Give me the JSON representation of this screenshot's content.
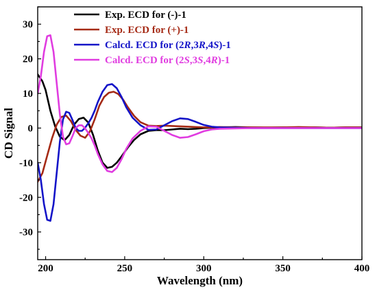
{
  "chart_data": {
    "type": "line",
    "xlabel": "Wavelength (nm)",
    "ylabel": "CD Signal",
    "xlim": [
      195,
      400
    ],
    "ylim": [
      -38,
      35
    ],
    "xticks": [
      200,
      250,
      300,
      350,
      400
    ],
    "yticks": [
      -30,
      -20,
      -10,
      0,
      10,
      20,
      30
    ],
    "grid": false,
    "legend_position": "top-center",
    "series": [
      {
        "name": "Exp. ECD for (-)-1",
        "legend_parts": [
          {
            "t": "Exp. ECD for (-)-1",
            "i": false
          }
        ],
        "color": "#000000",
        "x": [
          195,
          198,
          200,
          203,
          206,
          209,
          212,
          215,
          218,
          221,
          224,
          227,
          230,
          233,
          236,
          239,
          242,
          245,
          248,
          252,
          256,
          260,
          265,
          270,
          275,
          280,
          285,
          290,
          295,
          300,
          305,
          310,
          320,
          330,
          340,
          350,
          360,
          370,
          380,
          390,
          400
        ],
        "y": [
          15.5,
          13.5,
          11,
          5,
          0.5,
          -2.5,
          -3.5,
          -2,
          1,
          2.6,
          3,
          1.6,
          -2,
          -6.5,
          -10,
          -11.5,
          -11.2,
          -10,
          -8.2,
          -5.6,
          -3.4,
          -1.8,
          -0.8,
          -0.6,
          -0.6,
          -0.4,
          -0.2,
          -0.3,
          -0.2,
          0,
          0.1,
          0.2,
          0.3,
          0.2,
          0.1,
          0.2,
          0.2,
          0.2,
          0.1,
          0.2,
          0.2
        ]
      },
      {
        "name": "Exp. ECD for (+)-1",
        "legend_parts": [
          {
            "t": "Exp. ECD for (+)-1",
            "i": false
          }
        ],
        "color": "#a52a15",
        "x": [
          195,
          198,
          201,
          204,
          207,
          210,
          213,
          216,
          219,
          222,
          225,
          228,
          231,
          234,
          237,
          240,
          243,
          246,
          249,
          252,
          256,
          260,
          265,
          270,
          275,
          280,
          285,
          290,
          295,
          300,
          305,
          310,
          320,
          330,
          340,
          350,
          360,
          370,
          380,
          390,
          400
        ],
        "y": [
          -15.5,
          -13,
          -8,
          -3,
          1,
          3.2,
          3.6,
          2,
          -0.5,
          -2.2,
          -2.8,
          -1,
          2.5,
          6.5,
          9,
          10.2,
          10.5,
          9.8,
          8.2,
          6,
          3.5,
          1.7,
          0.7,
          0.6,
          0.7,
          0.6,
          0.5,
          0.4,
          0.3,
          0.2,
          0.2,
          0.3,
          0.2,
          0.2,
          0.2,
          0.2,
          0.3,
          0.2,
          0.1,
          0.2,
          0.2
        ]
      },
      {
        "name": "Calcd. ECD for (2R,3R,4S)-1",
        "legend_parts": [
          {
            "t": "Calcd. ECD for (2",
            "i": false
          },
          {
            "t": "R",
            "i": true
          },
          {
            "t": ",3",
            "i": false
          },
          {
            "t": "R",
            "i": true
          },
          {
            "t": ",4",
            "i": false
          },
          {
            "t": "S",
            "i": true
          },
          {
            "t": ")-1",
            "i": false
          }
        ],
        "color": "#1414c8",
        "x": [
          195,
          197,
          199,
          201,
          203,
          205,
          207,
          209,
          211,
          213,
          215,
          217,
          219,
          221,
          223,
          225,
          227,
          229,
          231,
          233,
          236,
          239,
          242,
          245,
          248,
          251,
          255,
          260,
          265,
          270,
          275,
          280,
          285,
          290,
          295,
          300,
          305,
          310,
          320,
          330,
          340,
          350,
          360,
          370,
          380,
          390,
          400
        ],
        "y": [
          -10,
          -15,
          -22,
          -26.5,
          -26.8,
          -22,
          -13,
          -4,
          2.5,
          4.7,
          4.4,
          2.3,
          0,
          -0.8,
          -0.8,
          0.1,
          1.4,
          2.9,
          5,
          7.5,
          10.5,
          12.4,
          12.7,
          11.5,
          9,
          6,
          3,
          0.8,
          -0.5,
          -0.4,
          0.8,
          2,
          2.8,
          2.6,
          1.8,
          0.9,
          0.4,
          0.2,
          0.1,
          0,
          0,
          0,
          0,
          0,
          0,
          0,
          0
        ]
      },
      {
        "name": "Calcd. ECD for (2S,3S,4R)-1",
        "legend_parts": [
          {
            "t": "Calcd. ECD for (2",
            "i": false
          },
          {
            "t": "S",
            "i": true
          },
          {
            "t": ",3",
            "i": false
          },
          {
            "t": "S",
            "i": true
          },
          {
            "t": ",4",
            "i": false
          },
          {
            "t": "R",
            "i": true
          },
          {
            "t": ")-1",
            "i": false
          }
        ],
        "color": "#e03ce0",
        "x": [
          195,
          197,
          199,
          201,
          203,
          205,
          207,
          209,
          211,
          213,
          215,
          217,
          219,
          221,
          223,
          225,
          227,
          229,
          231,
          233,
          236,
          239,
          242,
          245,
          248,
          251,
          255,
          260,
          265,
          270,
          275,
          280,
          285,
          290,
          295,
          300,
          305,
          310,
          320,
          330,
          340,
          350,
          360,
          370,
          380,
          390,
          400
        ],
        "y": [
          10,
          15,
          22,
          26.5,
          26.8,
          22,
          13,
          4,
          -2.5,
          -4.7,
          -4.4,
          -2.3,
          0,
          0.8,
          0.8,
          -0.1,
          -1.4,
          -2.9,
          -5,
          -7.5,
          -10.5,
          -12.4,
          -12.7,
          -11.5,
          -9,
          -6,
          -3,
          -0.8,
          0.5,
          0.4,
          -0.8,
          -2,
          -2.8,
          -2.6,
          -1.8,
          -0.9,
          -0.4,
          -0.2,
          -0.1,
          0,
          0,
          0,
          0,
          0,
          0,
          0,
          0
        ]
      }
    ]
  }
}
